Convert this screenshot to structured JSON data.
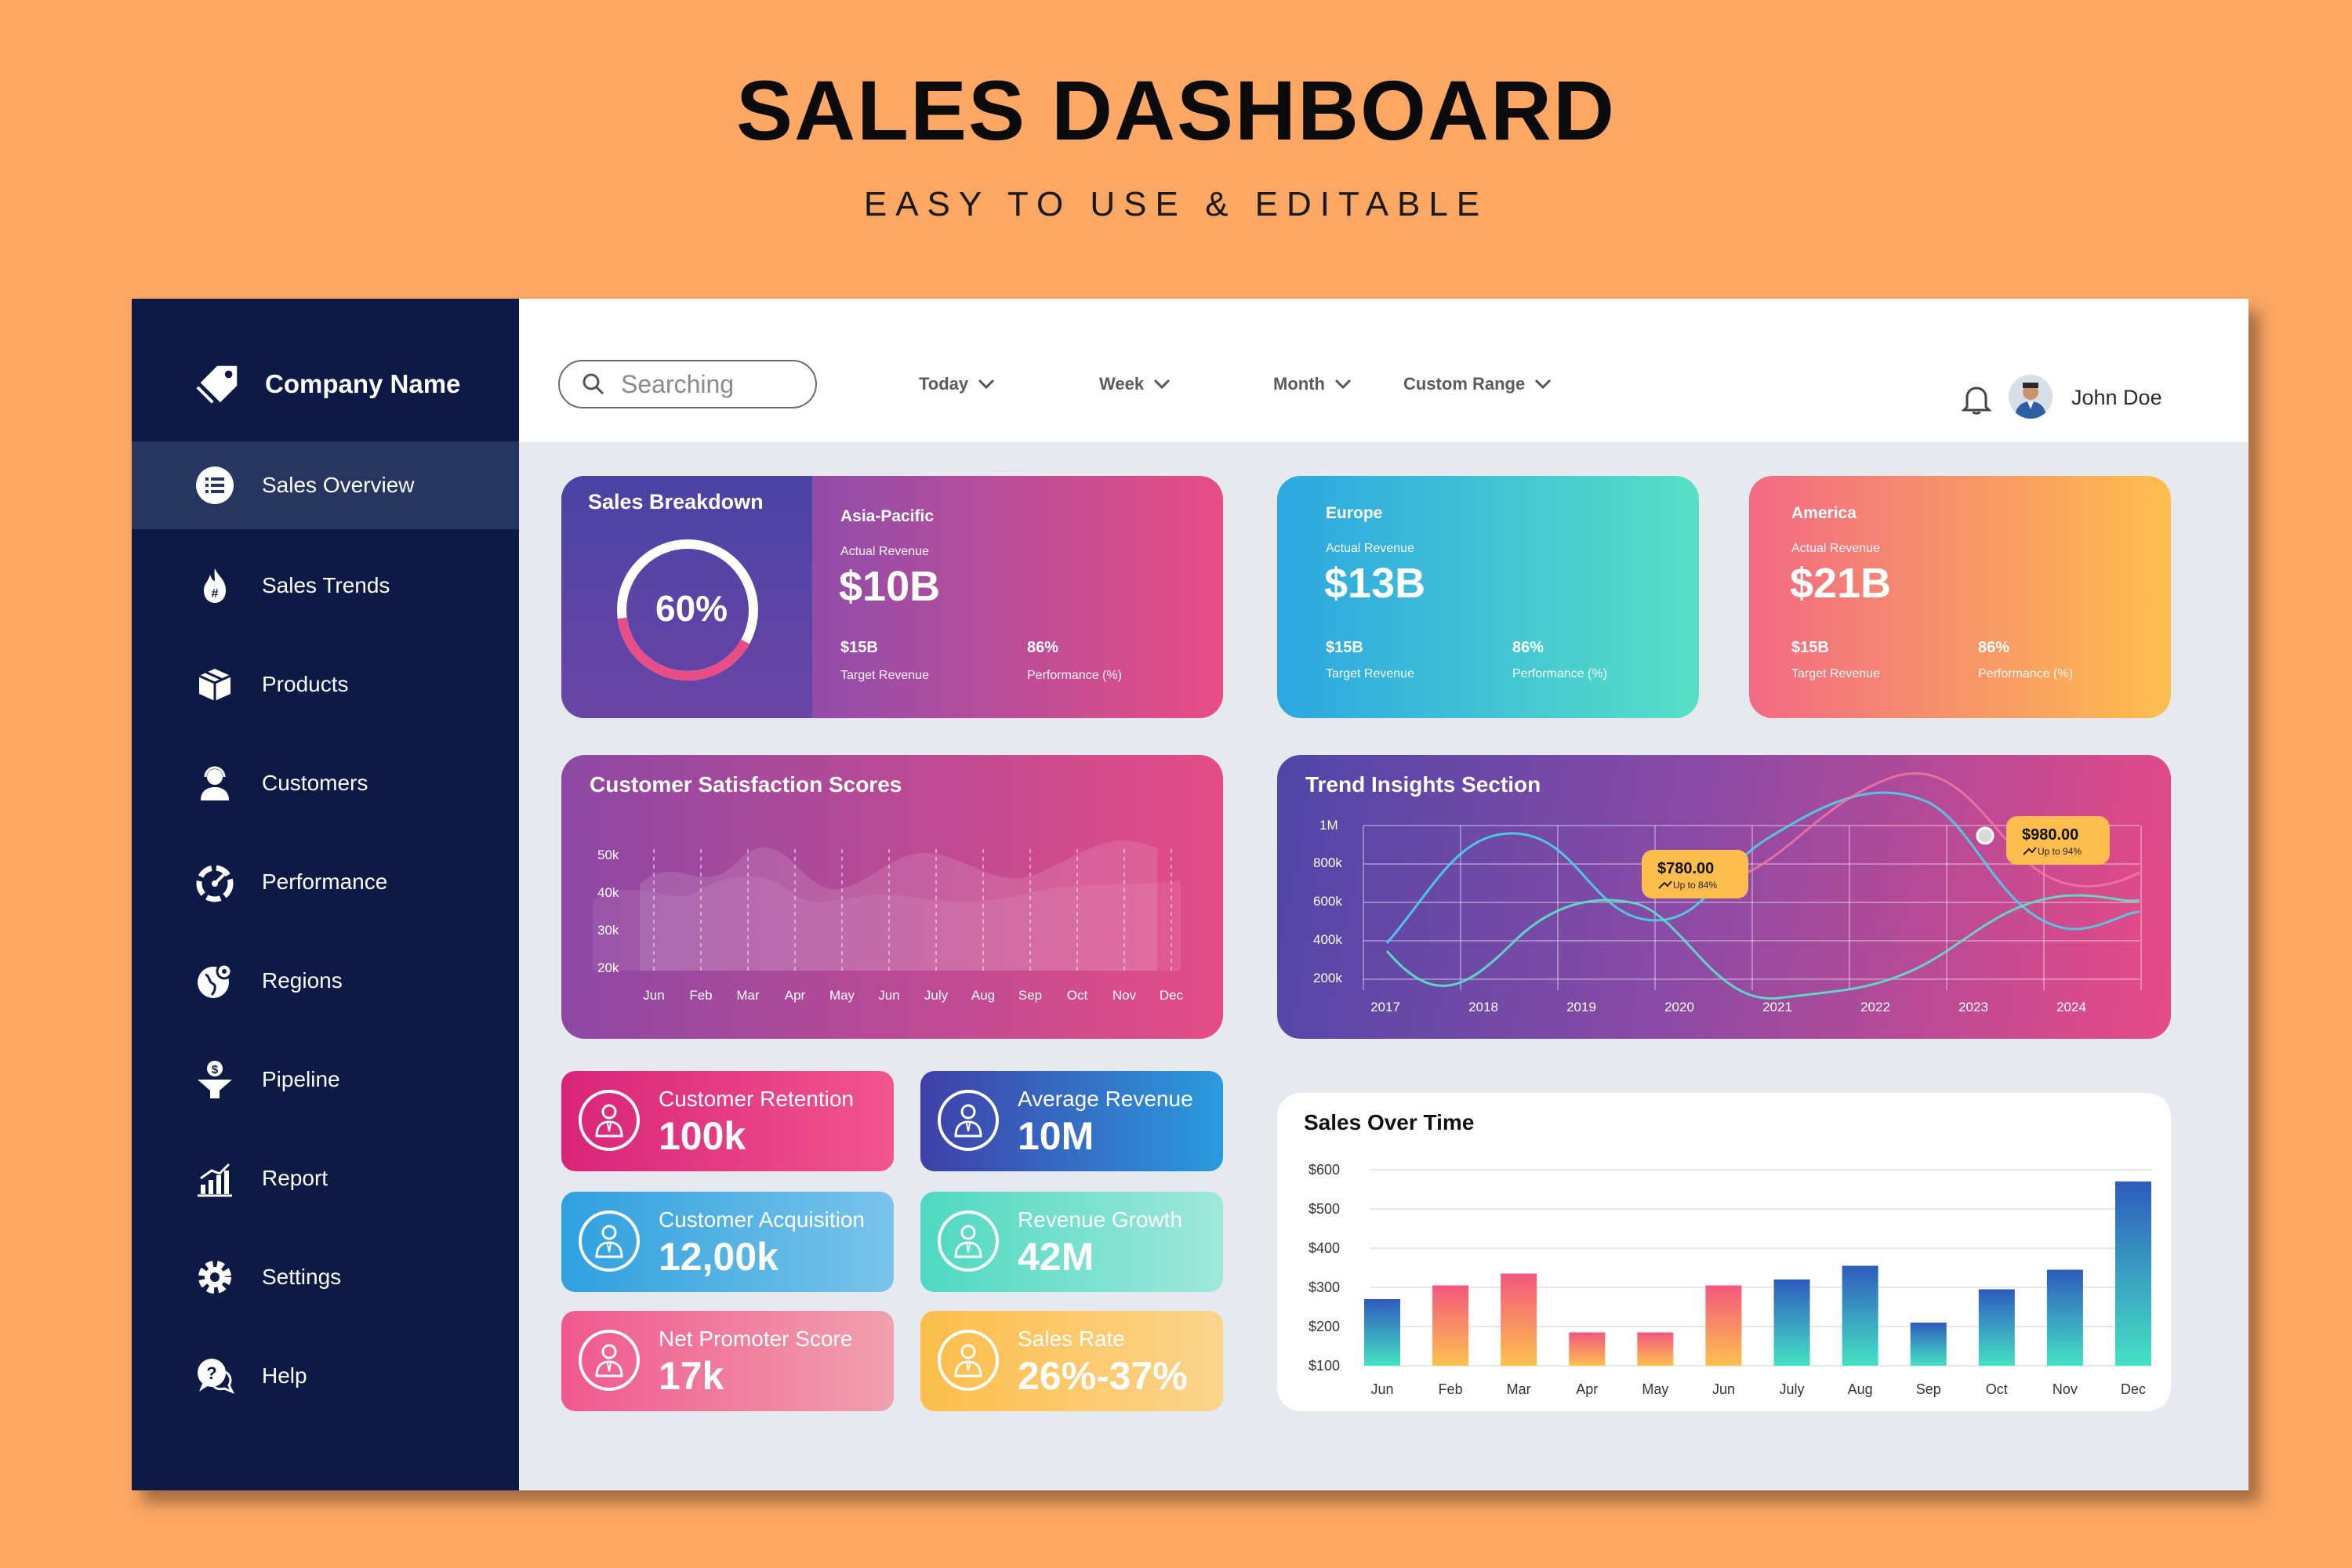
{
  "header": {
    "title": "SALES DASHBOARD",
    "subtitle": "EASY TO USE & EDITABLE"
  },
  "sidebar": {
    "company": "Company Name",
    "items": [
      {
        "label": "Sales Overview",
        "icon": "list-icon",
        "active": true
      },
      {
        "label": "Sales Trends",
        "icon": "fire-hashtag-icon"
      },
      {
        "label": "Products",
        "icon": "box-icon"
      },
      {
        "label": "Customers",
        "icon": "headset-user-icon"
      },
      {
        "label": "Performance",
        "icon": "gauge-icon"
      },
      {
        "label": "Regions",
        "icon": "globe-pin-icon"
      },
      {
        "label": "Pipeline",
        "icon": "funnel-dollar-icon"
      },
      {
        "label": "Report",
        "icon": "bar-chart-icon"
      },
      {
        "label": "Settings",
        "icon": "gear-icon"
      },
      {
        "label": "Help",
        "icon": "chat-question-icon"
      }
    ]
  },
  "topbar": {
    "search_placeholder": "Searching",
    "filters": [
      "Today",
      "Week",
      "Month",
      "Custom Range"
    ],
    "user": "John Doe"
  },
  "breakdown": {
    "title": "Sales Breakdown",
    "percent_label": "60%",
    "percent": 60,
    "region": "Asia-Pacific",
    "actual_label": "Actual Revenue",
    "actual": "$10B",
    "target": "$15B",
    "target_label": "Target Revenue",
    "performance": "86%",
    "performance_label": "Performance (%)"
  },
  "europe": {
    "region": "Europe",
    "actual_label": "Actual Revenue",
    "actual": "$13B",
    "target": "$15B",
    "target_label": "Target Revenue",
    "performance": "86%",
    "performance_label": "Performance (%)"
  },
  "america": {
    "region": "America",
    "actual_label": "Actual Revenue",
    "actual": "$21B",
    "target": "$15B",
    "target_label": "Target Revenue",
    "performance": "86%",
    "performance_label": "Performance (%)"
  },
  "csat": {
    "title": "Customer Satisfaction Scores",
    "y_ticks": [
      "50k",
      "40k",
      "30k",
      "20k"
    ],
    "months": [
      "Jun",
      "Feb",
      "Mar",
      "Apr",
      "May",
      "Jun",
      "July",
      "Aug",
      "Sep",
      "Oct",
      "Nov",
      "Dec"
    ]
  },
  "trend": {
    "title": "Trend Insights Section",
    "y_ticks": [
      "1M",
      "800k",
      "600k",
      "400k",
      "200k"
    ],
    "years": [
      "2017",
      "2018",
      "2019",
      "2020",
      "2021",
      "2022",
      "2023",
      "2024"
    ],
    "callouts": [
      {
        "value": "$780.00",
        "note": "Up to 84%"
      },
      {
        "value": "$980.00",
        "note": "Up to 94%"
      }
    ]
  },
  "kpis": [
    {
      "label": "Customer Retention",
      "value": "100k",
      "colors": [
        "#D8247A",
        "#F2558E"
      ]
    },
    {
      "label": "Average Revenue",
      "value": "10M",
      "colors": [
        "#3F3FA8",
        "#2A9BDF"
      ]
    },
    {
      "label": "Customer Acquisition",
      "value": "12,00k",
      "colors": [
        "#2FA0DF",
        "#79C4EA"
      ]
    },
    {
      "label": "Revenue Growth",
      "value": "42M",
      "colors": [
        "#4FD8C2",
        "#9FE8DA"
      ]
    },
    {
      "label": "Net Promoter Score",
      "value": "17k",
      "colors": [
        "#F0588E",
        "#F1A0B0"
      ]
    },
    {
      "label": "Sales Rate",
      "value": "26%-37%",
      "colors": [
        "#FDBE4A",
        "#FBD48D"
      ]
    }
  ],
  "chart_data": {
    "type": "bar",
    "title": "Sales Over Time",
    "categories": [
      "Jun",
      "Feb",
      "Mar",
      "Apr",
      "May",
      "Jun",
      "July",
      "Aug",
      "Sep",
      "Oct",
      "Nov",
      "Dec"
    ],
    "y_ticks": [
      "$600",
      "$500",
      "$400",
      "$300",
      "$200",
      "$100"
    ],
    "ylim": [
      100,
      600
    ],
    "values": [
      270,
      305,
      335,
      185,
      185,
      305,
      320,
      355,
      210,
      295,
      345,
      570
    ],
    "bar_styles": [
      "blue",
      "orange",
      "orange",
      "orange",
      "orange",
      "orange",
      "blue",
      "blue",
      "blue",
      "blue",
      "blue",
      "blue"
    ],
    "colors": {
      "blue_top": "#2E5BBE",
      "blue_bottom": "#45E2C4",
      "orange_top": "#F4577E",
      "orange_bottom": "#FDC14E"
    }
  }
}
